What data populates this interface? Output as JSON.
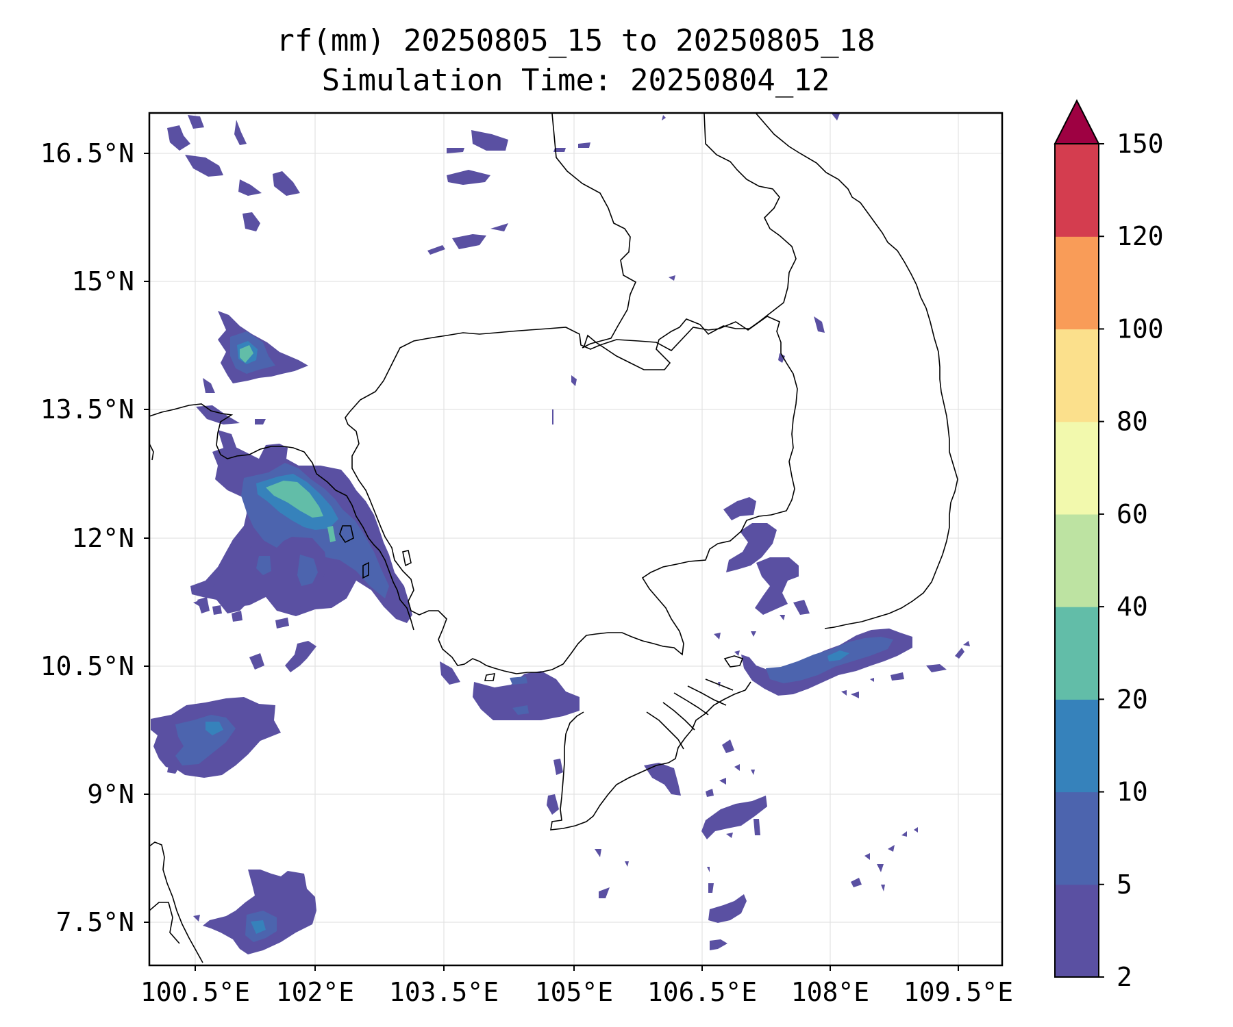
{
  "title": {
    "line1": "rf(mm) 20250805_15 to 20250805_18",
    "line2": "Simulation Time: 20250804_12"
  },
  "map": {
    "lat_labels": [
      "16.5°N",
      "15°N",
      "13.5°N",
      "12°N",
      "10.5°N",
      "9°N",
      "7.5°N"
    ],
    "lon_labels": [
      "100.5°E",
      "102°E",
      "103.5°E",
      "105°E",
      "106.5°E",
      "108°E",
      "109.5°E"
    ],
    "grid_lines": true
  },
  "colorbar": {
    "levels": [
      "2",
      "5",
      "10",
      "20",
      "40",
      "60",
      "80",
      "100",
      "120",
      "150"
    ],
    "colors": [
      "#5a50a2",
      "#4c64ae",
      "#3682bb",
      "#62bda8",
      "#bde3a2",
      "#f2f9ad",
      "#fbe08c",
      "#f99c58",
      "#d43d4f"
    ],
    "extend_color": "#9e0142",
    "extend": "max"
  },
  "palette": {
    "low": "#5a50a2",
    "mid": "#4c64ae",
    "high": "#3682bb",
    "peak": "#62bda8"
  }
}
